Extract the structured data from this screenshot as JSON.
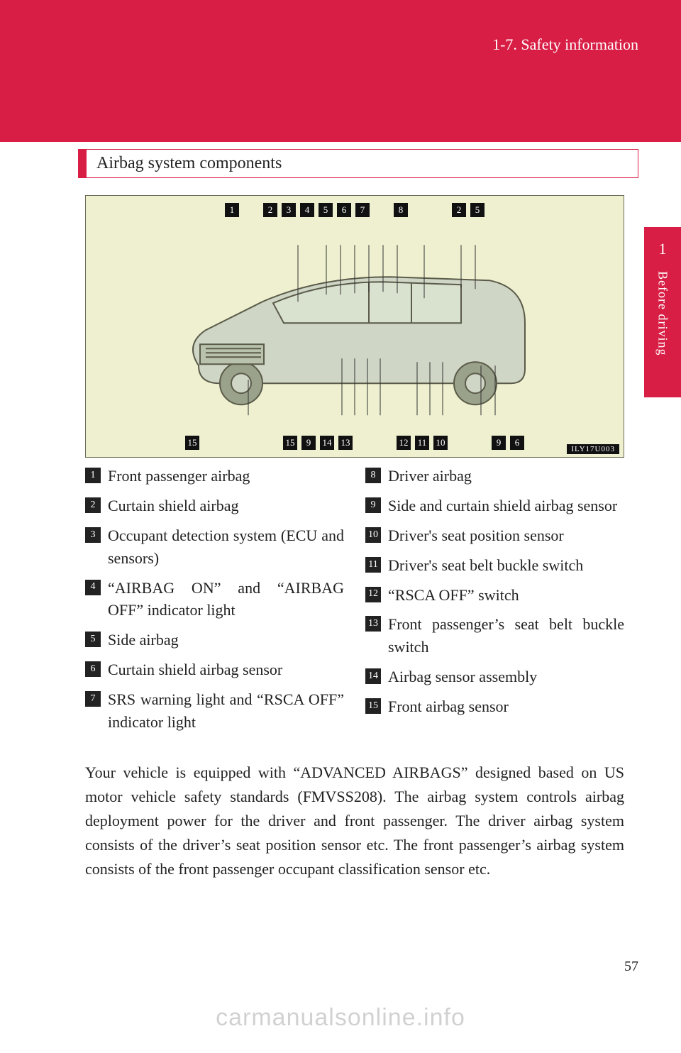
{
  "header": {
    "breadcrumb": "1-7. Safety information"
  },
  "side_tab": {
    "chapter_number": "1",
    "chapter_label": "Before driving"
  },
  "section": {
    "heading": "Airbag system components"
  },
  "diagram": {
    "background_color": "#eef0cf",
    "border_color": "#6a6a58",
    "top_callouts": [
      "1",
      "",
      "2",
      "3",
      "4",
      "5",
      "6",
      "7",
      "",
      "8",
      "",
      "",
      "2",
      "5"
    ],
    "bottom_callouts": [
      "15",
      "",
      "",
      "",
      "",
      "15",
      "9",
      "14",
      "13",
      "",
      "",
      "12",
      "11",
      "10",
      "",
      "",
      "9",
      "6"
    ],
    "image_code": "ILY17U003"
  },
  "components": {
    "left": [
      {
        "n": "1",
        "label": "Front passenger airbag"
      },
      {
        "n": "2",
        "label": "Curtain shield airbag"
      },
      {
        "n": "3",
        "label": "Occupant detection system (ECU and sensors)"
      },
      {
        "n": "4",
        "label": "“AIRBAG ON” and “AIRBAG OFF” indicator light"
      },
      {
        "n": "5",
        "label": "Side airbag"
      },
      {
        "n": "6",
        "label": "Curtain shield airbag sensor"
      },
      {
        "n": "7",
        "label": "SRS warning light and “RSCA OFF” indicator light"
      }
    ],
    "right": [
      {
        "n": "8",
        "label": "Driver airbag"
      },
      {
        "n": "9",
        "label": "Side and curtain shield airbag sensor"
      },
      {
        "n": "10",
        "label": "Driver's seat position sensor"
      },
      {
        "n": "11",
        "label": "Driver's seat belt buckle switch"
      },
      {
        "n": "12",
        "label": "“RSCA OFF” switch"
      },
      {
        "n": "13",
        "label": "Front passenger’s seat belt buckle switch"
      },
      {
        "n": "14",
        "label": "Airbag sensor assembly"
      },
      {
        "n": "15",
        "label": "Front airbag sensor"
      }
    ]
  },
  "body_paragraph": "Your vehicle is equipped with “ADVANCED AIRBAGS” designed based on US motor vehicle safety standards (FMVSS208). The airbag system controls airbag deployment power for the driver and front passenger. The driver airbag system consists of the driver’s seat position sensor etc. The front passenger’s airbag system consists of the front passenger occupant classification sensor etc.",
  "footer": {
    "page_number": "57",
    "watermark": "carmanualsonline.info"
  },
  "colors": {
    "brand_red": "#d81e45",
    "text": "#222222",
    "callout_bg": "#111111"
  },
  "typography": {
    "body_fontsize_pt": 16,
    "heading_fontsize_pt": 18
  }
}
